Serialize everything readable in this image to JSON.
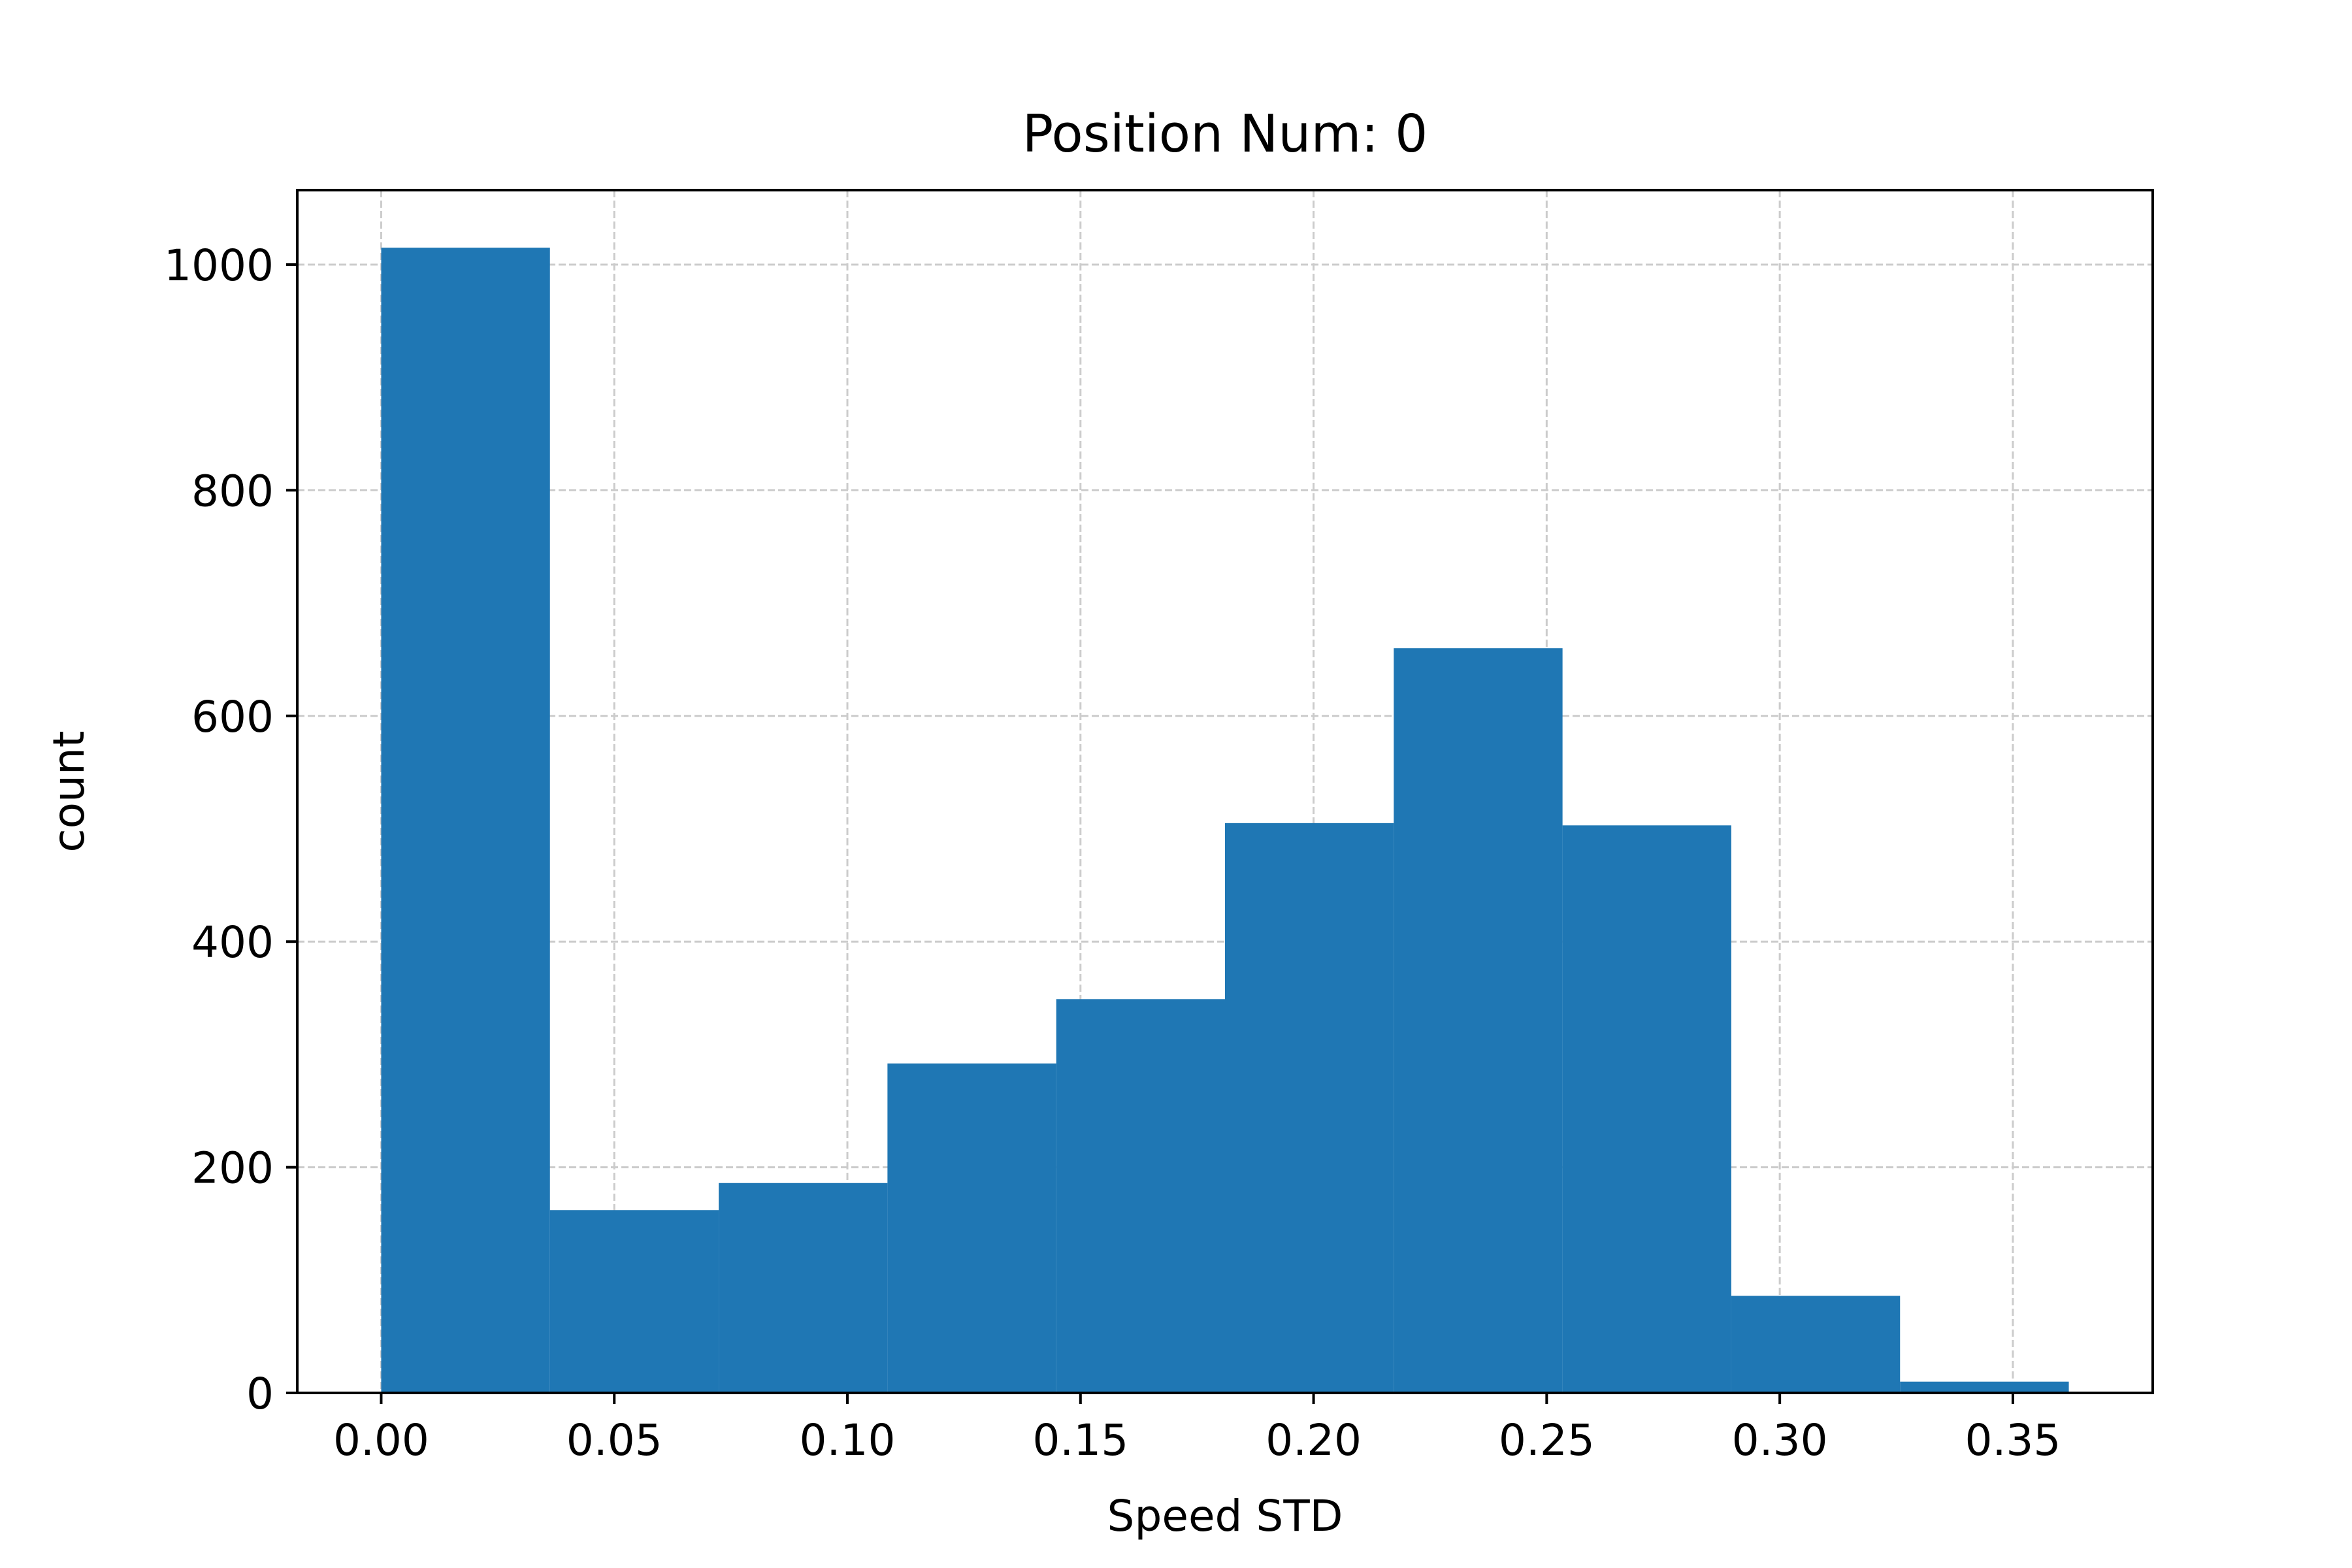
{
  "chart_data": {
    "type": "bar",
    "title": "Position Num: 0",
    "xlabel": "Speed STD",
    "ylabel": "count",
    "bin_edges": [
      0.0,
      0.0362,
      0.0724,
      0.1086,
      0.1448,
      0.181,
      0.2172,
      0.2534,
      0.2896,
      0.3258,
      0.362
    ],
    "values": [
      1015,
      162,
      186,
      292,
      349,
      505,
      660,
      503,
      86,
      10
    ],
    "xlim": [
      -0.018,
      0.38
    ],
    "ylim": [
      0,
      1066
    ],
    "xticks": [
      0.0,
      0.05,
      0.1,
      0.15,
      0.2,
      0.25,
      0.3,
      0.35
    ],
    "xtick_labels": [
      "0.00",
      "0.05",
      "0.10",
      "0.15",
      "0.20",
      "0.25",
      "0.30",
      "0.35"
    ],
    "yticks": [
      0,
      200,
      400,
      600,
      800,
      1000
    ],
    "ytick_labels": [
      "0",
      "200",
      "400",
      "600",
      "800",
      "1000"
    ],
    "grid": true,
    "bar_color": "#1f77b4",
    "grid_color": "#cccccc"
  }
}
